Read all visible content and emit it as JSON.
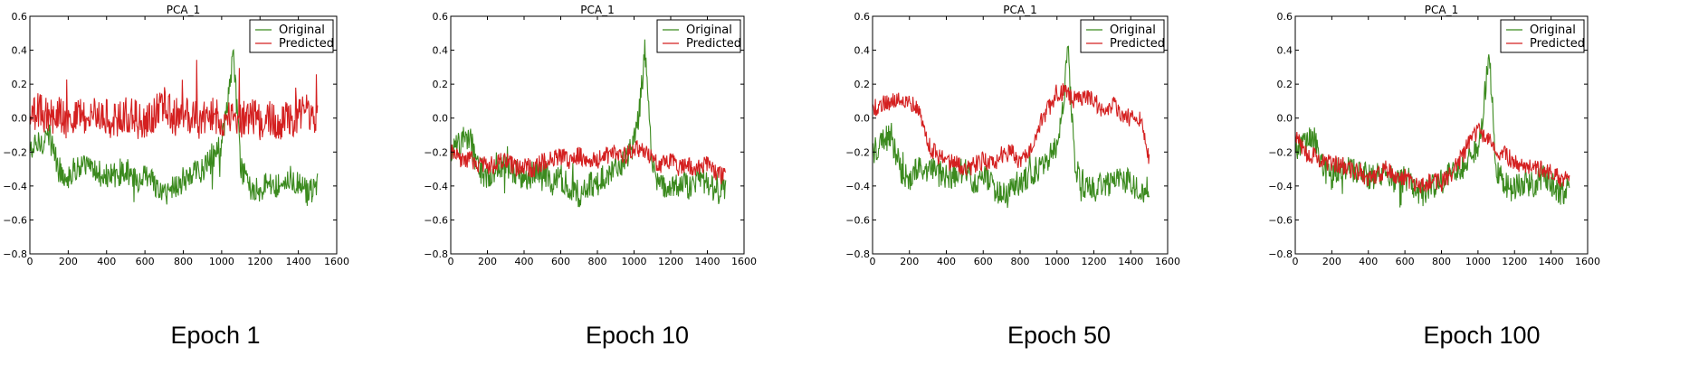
{
  "chart_data": [
    {
      "type": "line",
      "title": "PCA_1",
      "caption": "Epoch 1",
      "xlim": [
        0,
        1600
      ],
      "ylim": [
        -0.8,
        0.6
      ],
      "xticks": [
        "0",
        "200",
        "400",
        "600",
        "800",
        "1000",
        "1200",
        "1400",
        "1600"
      ],
      "yticks": [
        "0.6",
        "0.4",
        "0.2",
        "0.0",
        "−0.2",
        "−0.4",
        "−0.6",
        "−0.8"
      ],
      "legend": {
        "position": "top-right",
        "entries": [
          "Original",
          "Predicted"
        ]
      },
      "series": [
        {
          "name": "Original",
          "color": "#3b8a1e",
          "x": [
            0,
            50,
            100,
            150,
            200,
            250,
            300,
            350,
            400,
            450,
            500,
            550,
            600,
            650,
            700,
            750,
            800,
            850,
            900,
            950,
            1000,
            1030,
            1060,
            1080,
            1100,
            1150,
            1200,
            1250,
            1300,
            1350,
            1400,
            1450,
            1500
          ],
          "y": [
            -0.2,
            -0.15,
            -0.1,
            -0.3,
            -0.35,
            -0.28,
            -0.3,
            -0.32,
            -0.35,
            -0.33,
            -0.3,
            -0.38,
            -0.35,
            -0.4,
            -0.45,
            -0.4,
            -0.38,
            -0.33,
            -0.3,
            -0.25,
            -0.15,
            0.05,
            0.4,
            0.05,
            -0.3,
            -0.4,
            -0.42,
            -0.38,
            -0.4,
            -0.35,
            -0.38,
            -0.45,
            -0.4
          ]
        },
        {
          "name": "Predicted",
          "color": "#d42020",
          "x": [
            0,
            50,
            100,
            150,
            200,
            250,
            300,
            350,
            400,
            450,
            500,
            550,
            600,
            650,
            700,
            750,
            800,
            850,
            900,
            950,
            1000,
            1050,
            1100,
            1150,
            1200,
            1250,
            1300,
            1350,
            1400,
            1450,
            1500
          ],
          "y": [
            0.0,
            0.05,
            0.0,
            0.02,
            -0.02,
            0.03,
            0.0,
            0.02,
            0.0,
            -0.02,
            0.02,
            0.0,
            -0.05,
            0.02,
            0.1,
            0.0,
            0.03,
            0.0,
            -0.02,
            0.02,
            0.0,
            0.0,
            -0.02,
            0.02,
            -0.02,
            0.0,
            -0.04,
            0.0,
            0.0,
            0.05,
            0.0
          ]
        }
      ]
    },
    {
      "type": "line",
      "title": "PCA_1",
      "caption": "Epoch 10",
      "xlim": [
        0,
        1600
      ],
      "ylim": [
        -0.8,
        0.6
      ],
      "xticks": [
        "0",
        "200",
        "400",
        "600",
        "800",
        "1000",
        "1200",
        "1400",
        "1600"
      ],
      "yticks": [
        "0.6",
        "0.4",
        "0.2",
        "0.0",
        "−0.2",
        "−0.4",
        "−0.6",
        "−0.8"
      ],
      "legend": {
        "position": "top-right",
        "entries": [
          "Original",
          "Predicted"
        ]
      },
      "series": [
        {
          "name": "Original",
          "color": "#3b8a1e",
          "x": [
            0,
            50,
            100,
            150,
            200,
            250,
            300,
            350,
            400,
            450,
            500,
            550,
            600,
            650,
            700,
            750,
            800,
            850,
            900,
            950,
            1000,
            1030,
            1060,
            1080,
            1100,
            1150,
            1200,
            1250,
            1300,
            1350,
            1400,
            1450,
            1500
          ],
          "y": [
            -0.2,
            -0.15,
            -0.1,
            -0.3,
            -0.35,
            -0.28,
            -0.3,
            -0.32,
            -0.35,
            -0.33,
            -0.3,
            -0.38,
            -0.35,
            -0.4,
            -0.45,
            -0.4,
            -0.38,
            -0.33,
            -0.3,
            -0.25,
            -0.15,
            0.05,
            0.4,
            0.05,
            -0.3,
            -0.4,
            -0.42,
            -0.38,
            -0.4,
            -0.35,
            -0.38,
            -0.45,
            -0.4
          ]
        },
        {
          "name": "Predicted",
          "color": "#d42020",
          "x": [
            0,
            50,
            100,
            150,
            200,
            250,
            300,
            350,
            400,
            450,
            500,
            550,
            600,
            650,
            700,
            750,
            800,
            850,
            900,
            950,
            1000,
            1050,
            1100,
            1150,
            1200,
            1250,
            1300,
            1350,
            1400,
            1450,
            1500
          ],
          "y": [
            -0.2,
            -0.25,
            -0.24,
            -0.27,
            -0.28,
            -0.27,
            -0.25,
            -0.3,
            -0.28,
            -0.3,
            -0.26,
            -0.25,
            -0.22,
            -0.25,
            -0.22,
            -0.24,
            -0.25,
            -0.22,
            -0.2,
            -0.22,
            -0.18,
            -0.18,
            -0.25,
            -0.27,
            -0.25,
            -0.3,
            -0.28,
            -0.3,
            -0.27,
            -0.32,
            -0.35
          ]
        }
      ]
    },
    {
      "type": "line",
      "title": "PCA_1",
      "caption": "Epoch 50",
      "xlim": [
        0,
        1600
      ],
      "ylim": [
        -0.8,
        0.6
      ],
      "xticks": [
        "0",
        "200",
        "400",
        "600",
        "800",
        "1000",
        "1200",
        "1400",
        "1600"
      ],
      "yticks": [
        "0.6",
        "0.4",
        "0.2",
        "0.0",
        "−0.2",
        "−0.4",
        "−0.6",
        "−0.8"
      ],
      "legend": {
        "position": "top-right",
        "entries": [
          "Original",
          "Predicted"
        ]
      },
      "series": [
        {
          "name": "Original",
          "color": "#3b8a1e",
          "x": [
            0,
            50,
            100,
            150,
            200,
            250,
            300,
            350,
            400,
            450,
            500,
            550,
            600,
            650,
            700,
            750,
            800,
            850,
            900,
            950,
            1000,
            1030,
            1060,
            1080,
            1100,
            1150,
            1200,
            1250,
            1300,
            1350,
            1400,
            1450,
            1500
          ],
          "y": [
            -0.2,
            -0.15,
            -0.1,
            -0.3,
            -0.35,
            -0.28,
            -0.3,
            -0.32,
            -0.35,
            -0.33,
            -0.3,
            -0.38,
            -0.35,
            -0.4,
            -0.45,
            -0.4,
            -0.38,
            -0.33,
            -0.3,
            -0.25,
            -0.15,
            0.05,
            0.4,
            0.05,
            -0.3,
            -0.4,
            -0.42,
            -0.38,
            -0.4,
            -0.35,
            -0.38,
            -0.45,
            -0.4
          ]
        },
        {
          "name": "Predicted",
          "color": "#d42020",
          "x": [
            0,
            50,
            100,
            150,
            200,
            250,
            300,
            350,
            400,
            450,
            500,
            550,
            600,
            650,
            700,
            750,
            800,
            850,
            900,
            950,
            1000,
            1050,
            1100,
            1150,
            1200,
            1250,
            1300,
            1350,
            1400,
            1450,
            1500
          ],
          "y": [
            0.05,
            0.08,
            0.1,
            0.12,
            0.1,
            0.05,
            -0.15,
            -0.22,
            -0.25,
            -0.27,
            -0.3,
            -0.28,
            -0.25,
            -0.28,
            -0.22,
            -0.2,
            -0.25,
            -0.18,
            -0.05,
            0.05,
            0.15,
            0.15,
            0.1,
            0.12,
            0.1,
            0.05,
            0.08,
            0.02,
            0.0,
            0.0,
            -0.25
          ]
        }
      ]
    },
    {
      "type": "line",
      "title": "PCA_1",
      "caption": "Epoch 100",
      "xlim": [
        0,
        1600
      ],
      "ylim": [
        -0.8,
        0.6
      ],
      "xticks": [
        "0",
        "200",
        "400",
        "600",
        "800",
        "1000",
        "1200",
        "1400",
        "1600"
      ],
      "yticks": [
        "0.6",
        "0.4",
        "0.2",
        "0.0",
        "−0.2",
        "−0.4",
        "−0.6",
        "−0.8"
      ],
      "legend": {
        "position": "top-right",
        "entries": [
          "Original",
          "Predicted"
        ]
      },
      "series": [
        {
          "name": "Original",
          "color": "#3b8a1e",
          "x": [
            0,
            50,
            100,
            150,
            200,
            250,
            300,
            350,
            400,
            450,
            500,
            550,
            600,
            650,
            700,
            750,
            800,
            850,
            900,
            950,
            1000,
            1030,
            1060,
            1080,
            1100,
            1150,
            1200,
            1250,
            1300,
            1350,
            1400,
            1450,
            1500
          ],
          "y": [
            -0.2,
            -0.15,
            -0.1,
            -0.3,
            -0.35,
            -0.28,
            -0.3,
            -0.32,
            -0.35,
            -0.33,
            -0.3,
            -0.38,
            -0.35,
            -0.4,
            -0.45,
            -0.4,
            -0.38,
            -0.33,
            -0.3,
            -0.25,
            -0.15,
            0.05,
            0.4,
            0.05,
            -0.3,
            -0.4,
            -0.42,
            -0.38,
            -0.4,
            -0.35,
            -0.38,
            -0.45,
            -0.4
          ]
        },
        {
          "name": "Predicted",
          "color": "#d42020",
          "x": [
            0,
            50,
            100,
            150,
            200,
            250,
            300,
            350,
            400,
            450,
            500,
            550,
            600,
            650,
            700,
            750,
            800,
            850,
            900,
            950,
            1000,
            1050,
            1100,
            1150,
            1200,
            1250,
            1300,
            1350,
            1400,
            1450,
            1500
          ],
          "y": [
            -0.1,
            -0.2,
            -0.22,
            -0.25,
            -0.27,
            -0.28,
            -0.3,
            -0.32,
            -0.35,
            -0.33,
            -0.3,
            -0.36,
            -0.35,
            -0.38,
            -0.4,
            -0.36,
            -0.38,
            -0.33,
            -0.25,
            -0.15,
            -0.08,
            -0.1,
            -0.18,
            -0.22,
            -0.25,
            -0.28,
            -0.3,
            -0.3,
            -0.32,
            -0.35,
            -0.38
          ]
        }
      ]
    }
  ]
}
